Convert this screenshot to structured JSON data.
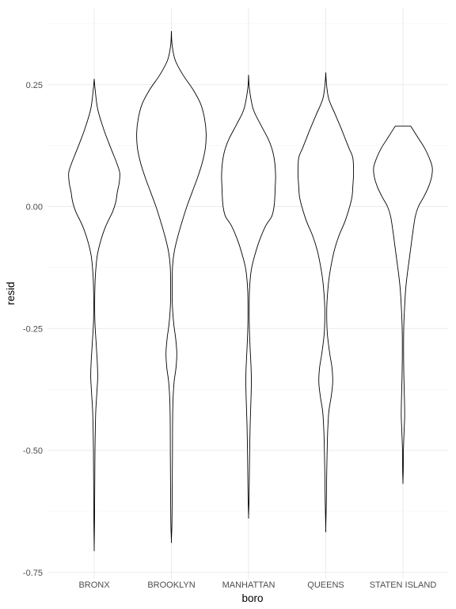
{
  "chart_data": {
    "type": "violin",
    "title": "",
    "xlabel": "boro",
    "ylabel": "resid",
    "categories": [
      "BRONX",
      "BROOKLYN",
      "MANHATTAN",
      "QUEENS",
      "STATEN ISLAND"
    ],
    "ylim": [
      -0.75,
      0.37
    ],
    "yticks": [
      0.25,
      0.0,
      -0.25,
      -0.5,
      -0.75
    ],
    "ytick_labels": [
      "0.25",
      "0.00",
      "-0.25",
      "-0.50",
      "-0.75"
    ],
    "grid": true,
    "legend": "none",
    "series": [
      {
        "category": "BRONX",
        "profile": [
          [
            0.262,
            0.0
          ],
          [
            0.24,
            0.012
          ],
          [
            0.2,
            0.045
          ],
          [
            0.16,
            0.12
          ],
          [
            0.13,
            0.19
          ],
          [
            0.11,
            0.24
          ],
          [
            0.09,
            0.29
          ],
          [
            0.07,
            0.33
          ],
          [
            0.05,
            0.325
          ],
          [
            0.03,
            0.3
          ],
          [
            0.01,
            0.28
          ],
          [
            -0.01,
            0.24
          ],
          [
            -0.04,
            0.15
          ],
          [
            -0.07,
            0.085
          ],
          [
            -0.1,
            0.04
          ],
          [
            -0.13,
            0.02
          ],
          [
            -0.16,
            0.01
          ],
          [
            -0.2,
            0.006
          ],
          [
            -0.24,
            0.01
          ],
          [
            -0.28,
            0.025
          ],
          [
            -0.32,
            0.04
          ],
          [
            -0.35,
            0.045
          ],
          [
            -0.38,
            0.035
          ],
          [
            -0.42,
            0.02
          ],
          [
            -0.46,
            0.014
          ],
          [
            -0.5,
            0.01
          ],
          [
            -0.55,
            0.008
          ],
          [
            -0.6,
            0.006
          ],
          [
            -0.65,
            0.004
          ],
          [
            -0.7,
            0.0
          ]
        ]
      },
      {
        "category": "BROOKLYN",
        "profile": [
          [
            0.36,
            0.0
          ],
          [
            0.33,
            0.01
          ],
          [
            0.3,
            0.05
          ],
          [
            0.27,
            0.15
          ],
          [
            0.24,
            0.28
          ],
          [
            0.21,
            0.38
          ],
          [
            0.18,
            0.43
          ],
          [
            0.15,
            0.45
          ],
          [
            0.12,
            0.44
          ],
          [
            0.09,
            0.4
          ],
          [
            0.06,
            0.34
          ],
          [
            0.03,
            0.27
          ],
          [
            0.0,
            0.2
          ],
          [
            -0.03,
            0.14
          ],
          [
            -0.06,
            0.085
          ],
          [
            -0.09,
            0.04
          ],
          [
            -0.12,
            0.016
          ],
          [
            -0.16,
            0.01
          ],
          [
            -0.2,
            0.012
          ],
          [
            -0.24,
            0.03
          ],
          [
            -0.27,
            0.055
          ],
          [
            -0.3,
            0.07
          ],
          [
            -0.33,
            0.06
          ],
          [
            -0.36,
            0.035
          ],
          [
            -0.4,
            0.02
          ],
          [
            -0.45,
            0.015
          ],
          [
            -0.5,
            0.014
          ],
          [
            -0.55,
            0.012
          ],
          [
            -0.6,
            0.01
          ],
          [
            -0.65,
            0.007
          ],
          [
            -0.685,
            0.0
          ]
        ]
      },
      {
        "category": "MANHATTAN",
        "profile": [
          [
            0.27,
            0.0
          ],
          [
            0.24,
            0.012
          ],
          [
            0.2,
            0.06
          ],
          [
            0.17,
            0.15
          ],
          [
            0.14,
            0.25
          ],
          [
            0.12,
            0.3
          ],
          [
            0.1,
            0.33
          ],
          [
            0.08,
            0.345
          ],
          [
            0.06,
            0.35
          ],
          [
            0.04,
            0.345
          ],
          [
            0.02,
            0.34
          ],
          [
            0.0,
            0.33
          ],
          [
            -0.02,
            0.3
          ],
          [
            -0.04,
            0.22
          ],
          [
            -0.07,
            0.14
          ],
          [
            -0.1,
            0.08
          ],
          [
            -0.13,
            0.035
          ],
          [
            -0.17,
            0.012
          ],
          [
            -0.21,
            0.008
          ],
          [
            -0.25,
            0.01
          ],
          [
            -0.29,
            0.02
          ],
          [
            -0.33,
            0.032
          ],
          [
            -0.36,
            0.036
          ],
          [
            -0.4,
            0.03
          ],
          [
            -0.45,
            0.02
          ],
          [
            -0.5,
            0.014
          ],
          [
            -0.55,
            0.01
          ],
          [
            -0.6,
            0.006
          ],
          [
            -0.635,
            0.0
          ]
        ]
      },
      {
        "category": "QUEENS",
        "profile": [
          [
            0.275,
            0.0
          ],
          [
            0.25,
            0.01
          ],
          [
            0.22,
            0.04
          ],
          [
            0.19,
            0.12
          ],
          [
            0.16,
            0.2
          ],
          [
            0.14,
            0.25
          ],
          [
            0.12,
            0.3
          ],
          [
            0.1,
            0.35
          ],
          [
            0.07,
            0.36
          ],
          [
            0.04,
            0.35
          ],
          [
            0.02,
            0.34
          ],
          [
            0.0,
            0.31
          ],
          [
            -0.03,
            0.25
          ],
          [
            -0.06,
            0.17
          ],
          [
            -0.09,
            0.11
          ],
          [
            -0.12,
            0.07
          ],
          [
            -0.15,
            0.04
          ],
          [
            -0.19,
            0.018
          ],
          [
            -0.22,
            0.012
          ],
          [
            -0.26,
            0.02
          ],
          [
            -0.3,
            0.05
          ],
          [
            -0.33,
            0.08
          ],
          [
            -0.36,
            0.09
          ],
          [
            -0.39,
            0.07
          ],
          [
            -0.42,
            0.04
          ],
          [
            -0.46,
            0.025
          ],
          [
            -0.5,
            0.018
          ],
          [
            -0.55,
            0.012
          ],
          [
            -0.6,
            0.008
          ],
          [
            -0.66,
            0.0
          ]
        ]
      },
      {
        "category": "STATEN ISLAND",
        "profile": [
          [
            0.165,
            0.1
          ],
          [
            0.14,
            0.2
          ],
          [
            0.12,
            0.28
          ],
          [
            0.1,
            0.34
          ],
          [
            0.08,
            0.38
          ],
          [
            0.06,
            0.37
          ],
          [
            0.04,
            0.33
          ],
          [
            0.02,
            0.27
          ],
          [
            0.0,
            0.2
          ],
          [
            -0.02,
            0.16
          ],
          [
            -0.05,
            0.13
          ],
          [
            -0.08,
            0.105
          ],
          [
            -0.11,
            0.08
          ],
          [
            -0.14,
            0.055
          ],
          [
            -0.17,
            0.035
          ],
          [
            -0.21,
            0.02
          ],
          [
            -0.25,
            0.01
          ],
          [
            -0.3,
            0.008
          ],
          [
            -0.35,
            0.012
          ],
          [
            -0.4,
            0.02
          ],
          [
            -0.43,
            0.022
          ],
          [
            -0.46,
            0.015
          ],
          [
            -0.5,
            0.006
          ],
          [
            -0.54,
            0.004
          ],
          [
            -0.565,
            0.0
          ]
        ]
      }
    ]
  }
}
